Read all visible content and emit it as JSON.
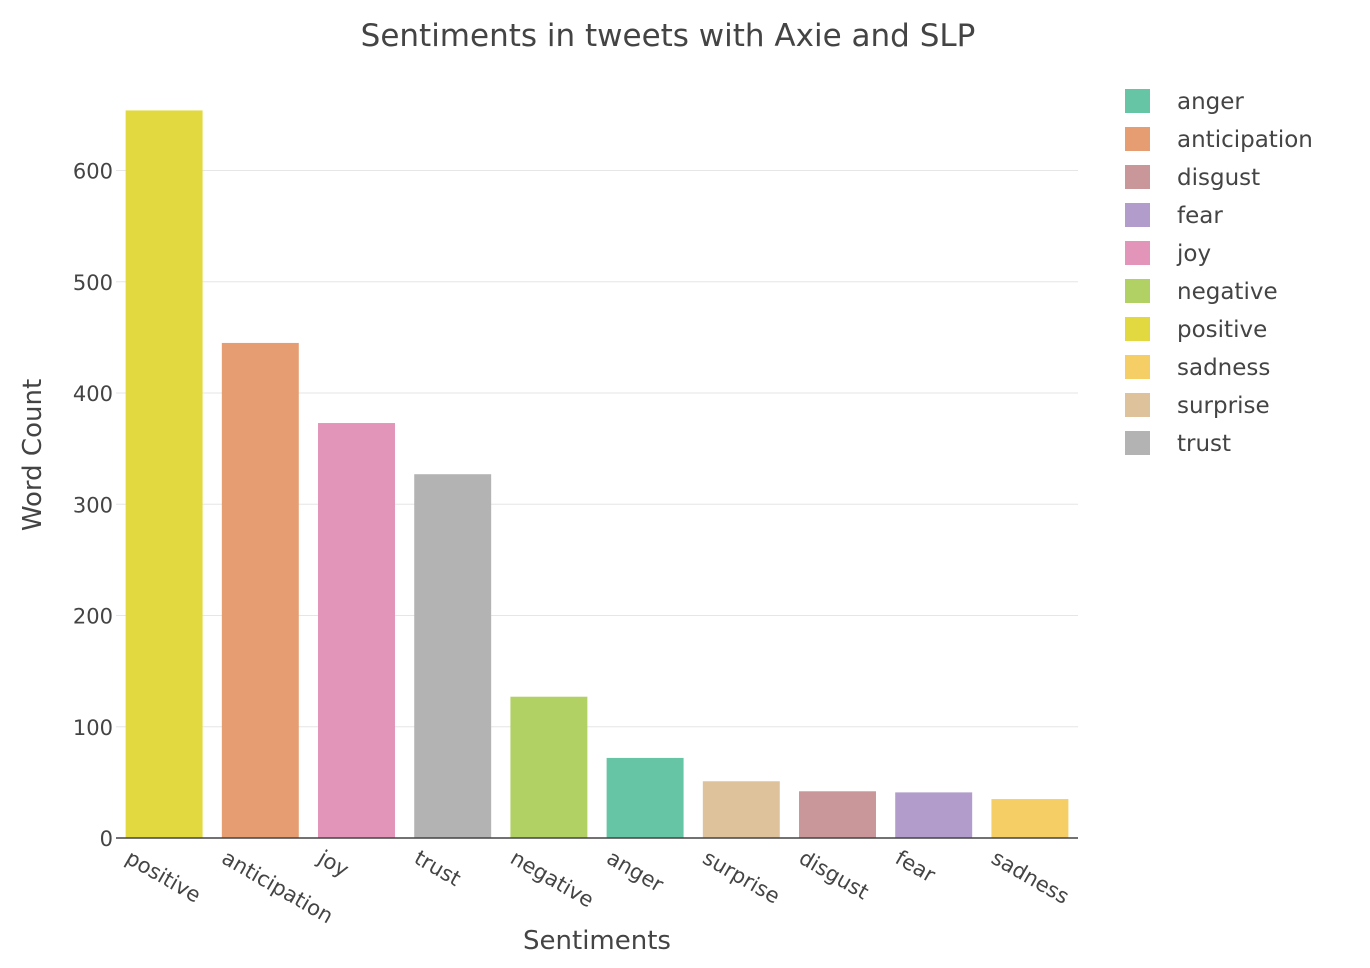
{
  "chart_data": {
    "type": "bar",
    "title": "Sentiments in tweets with Axie and SLP",
    "xlabel": "Sentiments",
    "ylabel": "Word Count",
    "ylim": [
      0,
      670
    ],
    "yticks": [
      0,
      100,
      200,
      300,
      400,
      500,
      600
    ],
    "grid": true,
    "legend_position": "top-right",
    "categories": [
      "positive",
      "anticipation",
      "joy",
      "trust",
      "negative",
      "anger",
      "surprise",
      "disgust",
      "fear",
      "sadness"
    ],
    "values": [
      654,
      445,
      373,
      327,
      127,
      72,
      51,
      42,
      41,
      35
    ],
    "colors": {
      "anger": "#66c5a5",
      "anticipation": "#e59d71",
      "disgust": "#c99799",
      "fear": "#b19ccb",
      "joy": "#e394b9",
      "negative": "#b2d165",
      "positive": "#e2d940",
      "sadness": "#f5cf65",
      "surprise": "#dec29c",
      "trust": "#b3b3b3"
    },
    "legend": [
      "anger",
      "anticipation",
      "disgust",
      "fear",
      "joy",
      "negative",
      "positive",
      "sadness",
      "surprise",
      "trust"
    ]
  }
}
